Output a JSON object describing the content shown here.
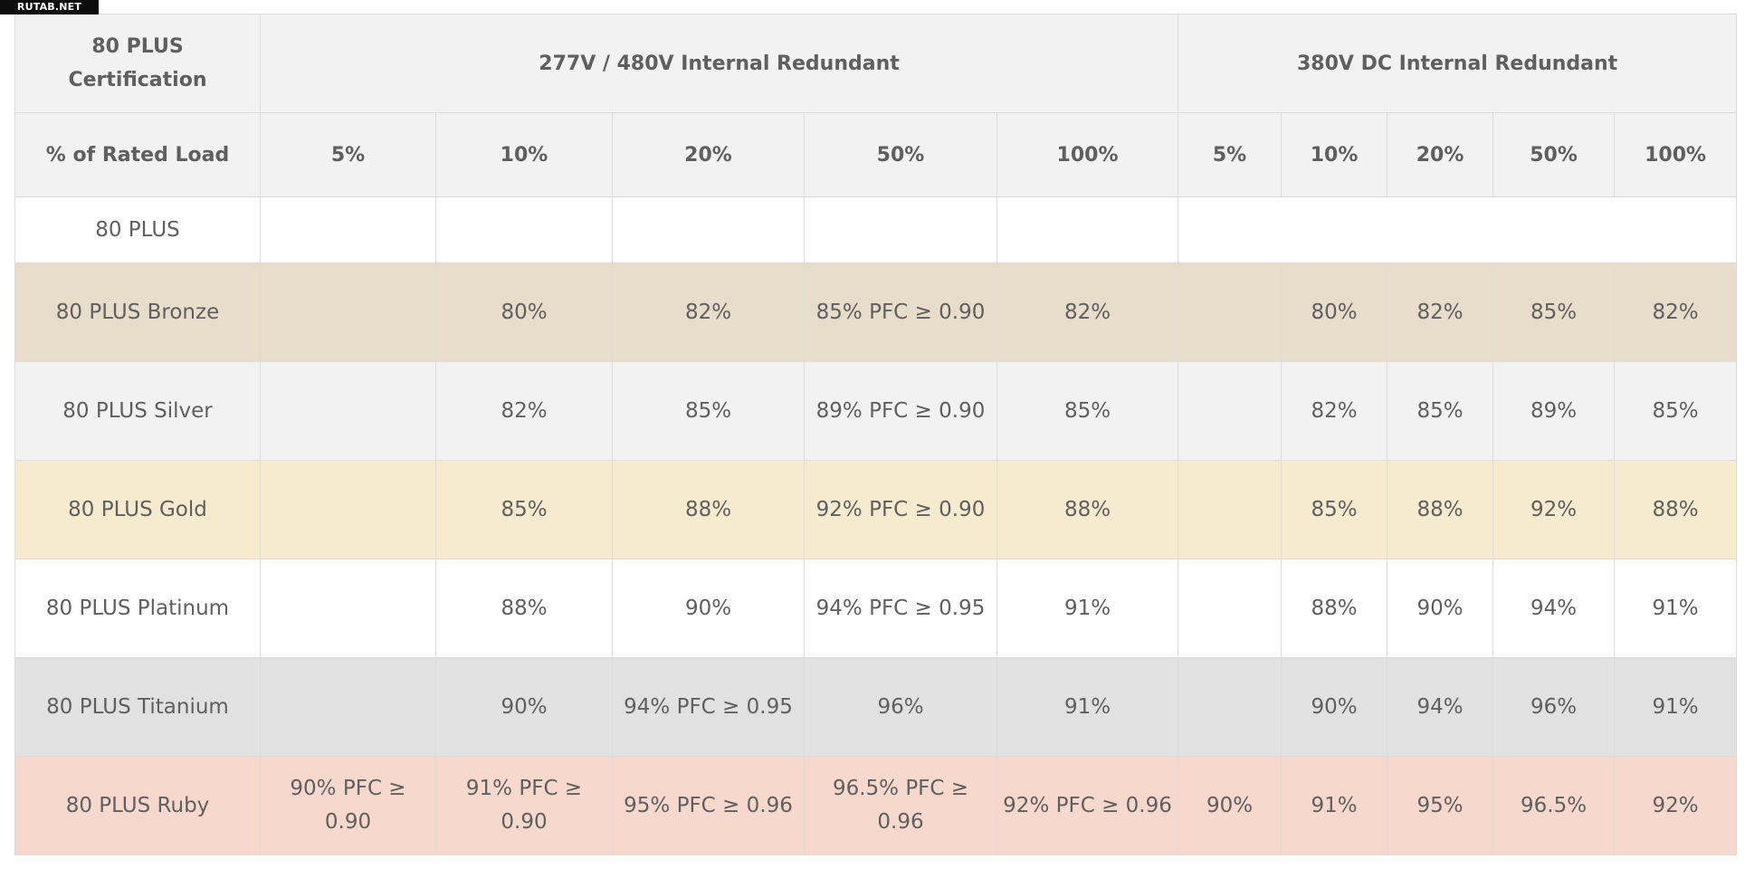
{
  "watermark": "RUTAB.NET",
  "header": {
    "certification_label": "80 PLUS Certification",
    "group_ac": "277V / 480V Internal Redundant",
    "group_dc": "380V DC Internal Redundant",
    "load_label": "% of Rated Load",
    "ac_loads": [
      "5%",
      "10%",
      "20%",
      "50%",
      "100%"
    ],
    "dc_loads": [
      "5%",
      "10%",
      "20%",
      "50%",
      "100%"
    ]
  },
  "colors": {
    "header_bg": "#f2f2f2",
    "plain": "#ffffff",
    "bronze": "#e8dccb",
    "silver": "#f2f2f2",
    "gold": "#f6ebcf",
    "platinum": "#ffffff",
    "titanium": "#e0e1e0",
    "ruby": "#f7d8cd",
    "text": "#5f5f5f",
    "border": "#dcdcdc"
  },
  "rows": [
    {
      "level": "80 PLUS",
      "ac": [
        "",
        "",
        "",
        "",
        ""
      ],
      "dc": [
        "",
        "",
        "",
        "",
        ""
      ]
    },
    {
      "level": "80 PLUS Bronze",
      "ac": [
        "",
        "80%",
        "82%",
        "85% PFC ≥ 0.90",
        "82%"
      ],
      "dc": [
        "",
        "80%",
        "82%",
        "85%",
        "82%"
      ]
    },
    {
      "level": "80 PLUS Silver",
      "ac": [
        "",
        "82%",
        "85%",
        "89% PFC ≥ 0.90",
        "85%"
      ],
      "dc": [
        "",
        "82%",
        "85%",
        "89%",
        "85%"
      ]
    },
    {
      "level": "80 PLUS Gold",
      "ac": [
        "",
        "85%",
        "88%",
        "92% PFC ≥ 0.90",
        "88%"
      ],
      "dc": [
        "",
        "85%",
        "88%",
        "92%",
        "88%"
      ]
    },
    {
      "level": "80 PLUS Platinum",
      "ac": [
        "",
        "88%",
        "90%",
        "94% PFC ≥ 0.95",
        "91%"
      ],
      "dc": [
        "",
        "88%",
        "90%",
        "94%",
        "91%"
      ]
    },
    {
      "level": "80 PLUS Titanium",
      "ac": [
        "",
        "90%",
        "94% PFC ≥ 0.95",
        "96%",
        "91%"
      ],
      "dc": [
        "",
        "90%",
        "94%",
        "96%",
        "91%"
      ]
    },
    {
      "level": "80 PLUS Ruby",
      "ac": [
        "90% PFC ≥ 0.90",
        "91% PFC ≥ 0.90",
        "95% PFC ≥ 0.96",
        "96.5% PFC ≥ 0.96",
        "92% PFC ≥ 0.96"
      ],
      "dc": [
        "90%",
        "91%",
        "95%",
        "96.5%",
        "92%"
      ]
    }
  ]
}
